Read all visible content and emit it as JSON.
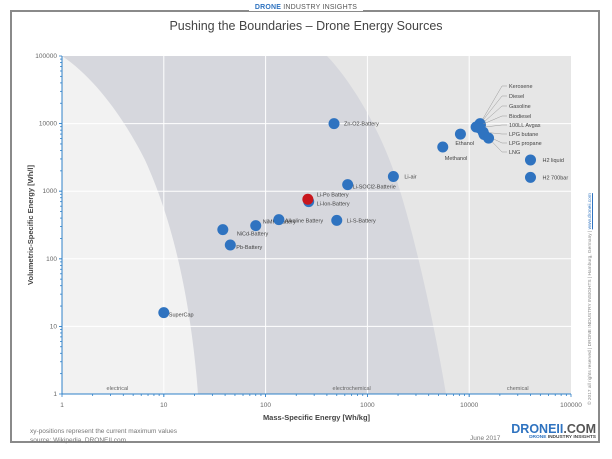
{
  "header": {
    "brand_bold": "DRONE",
    "brand_rest": " INDUSTRY INSIGHTS",
    "title": "Pushing the Boundaries – Drone Energy Sources"
  },
  "footer": {
    "note_line1": "xy-positions represent the current maximum values",
    "note_line2": "source: Wikipedia, DRONEII.com",
    "date": "June 2017",
    "logo_main": "DRONEII",
    "logo_suffix": ".COM",
    "logo_sub_bold": "DRONE",
    "logo_sub_rest": " INDUSTRY INSIGHTS",
    "side_text": "© 2017 all rights reserved  |  DRONE INDUSTRY INSIGHTS  |  Hamburg, Germany  |",
    "side_link": "www.droneii.com"
  },
  "colors": {
    "point": "#2f73c0",
    "highlight": "#c8161d",
    "axis": "#2f80c8",
    "region_electrical": "#f2f2f2",
    "region_electrochemical": "#d6d7dd",
    "region_chemical": "#e6e6e6"
  },
  "chart_data": {
    "type": "scatter",
    "title": "Pushing the Boundaries – Drone Energy Sources",
    "xlabel": "Mass-Specific Energy [Wh/kg]",
    "ylabel": "Volumetric-Specific Energy [Wh/l]",
    "xscale": "log",
    "yscale": "log",
    "xlim": [
      1,
      100000
    ],
    "ylim": [
      1,
      100000
    ],
    "xticks": [
      "1",
      "10",
      "100",
      "1000",
      "10000",
      "100000"
    ],
    "yticks": [
      "1",
      "10",
      "100",
      "1000",
      "10000",
      "100000"
    ],
    "grid": true,
    "regions": [
      {
        "label": "electrical"
      },
      {
        "label": "electrochemical"
      },
      {
        "label": "chemical"
      }
    ],
    "points": [
      {
        "name": "SuperCap",
        "x": 10,
        "y": 16
      },
      {
        "name": "Pb-Battery",
        "x": 45,
        "y": 160
      },
      {
        "name": "NiCd-Battery",
        "x": 38,
        "y": 270
      },
      {
        "name": "NiMH-Battery",
        "x": 80,
        "y": 310
      },
      {
        "name": "Alkaline Battery",
        "x": 135,
        "y": 380
      },
      {
        "name": "Li-Ion-Battery",
        "x": 265,
        "y": 700
      },
      {
        "name": "Li-Po Battery",
        "x": 260,
        "y": 760,
        "highlight": true
      },
      {
        "name": "Li-S-Battery",
        "x": 500,
        "y": 370
      },
      {
        "name": "Zn-O2-Battery",
        "x": 470,
        "y": 10000
      },
      {
        "name": "Li-SOCl2-Batterie",
        "x": 640,
        "y": 1250
      },
      {
        "name": "Li-air",
        "x": 1800,
        "y": 1650
      },
      {
        "name": "Methanol",
        "x": 5500,
        "y": 4500
      },
      {
        "name": "Ethanol",
        "x": 8200,
        "y": 7000
      },
      {
        "name": "Kerosene",
        "x": 12800,
        "y": 10000
      },
      {
        "name": "Diesel",
        "x": 12700,
        "y": 9800
      },
      {
        "name": "Gasoline",
        "x": 12900,
        "y": 9500
      },
      {
        "name": "Biodiesel",
        "x": 11700,
        "y": 8900
      },
      {
        "name": "100LL Avgas",
        "x": 12500,
        "y": 8700
      },
      {
        "name": "LPG butane",
        "x": 13700,
        "y": 7500
      },
      {
        "name": "LPG propane",
        "x": 14000,
        "y": 6900
      },
      {
        "name": "LNG",
        "x": 15500,
        "y": 6100
      },
      {
        "name": "H2 liquid",
        "x": 40000,
        "y": 2900
      },
      {
        "name": "H2 700bar",
        "x": 40000,
        "y": 1600
      }
    ]
  }
}
